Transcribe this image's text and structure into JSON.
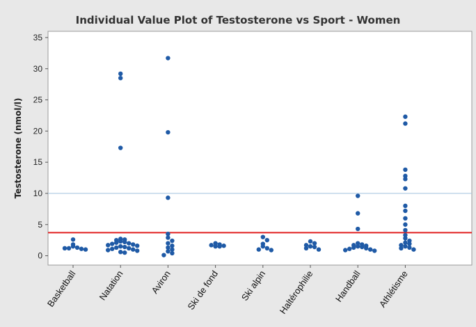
{
  "chart_data": {
    "type": "scatter",
    "title": "Individual Value Plot of Testosterone vs Sport - Women",
    "xlabel": "",
    "ylabel": "Testosterone (nmol/l)",
    "ylim": [
      -1.5,
      36
    ],
    "yticks": [
      0,
      5,
      10,
      15,
      20,
      25,
      30,
      35
    ],
    "categories": [
      "Basketball",
      "Natation",
      "Aviron",
      "Ski de fond",
      "Ski alpin",
      "Haltérophilie",
      "Handball",
      "Athlétisme"
    ],
    "reference_lines": [
      {
        "y": 10,
        "color": "#aac7e0"
      },
      {
        "y": 3.7,
        "color": "#e02020"
      }
    ],
    "series": [
      {
        "values": [
          [
            0,
            2.6
          ],
          [
            0,
            1.8
          ],
          [
            0,
            1.5
          ],
          [
            0,
            1.3
          ],
          [
            0,
            1.2
          ],
          [
            0,
            1.1
          ],
          [
            0,
            1.2
          ],
          [
            0,
            1.0
          ],
          [
            1,
            29.2
          ],
          [
            1,
            28.5
          ],
          [
            1,
            17.3
          ],
          [
            1,
            2.7
          ],
          [
            1,
            2.6
          ],
          [
            1,
            2.5
          ],
          [
            1,
            2.3
          ],
          [
            1,
            2.2
          ],
          [
            1,
            2.1
          ],
          [
            1,
            2.0
          ],
          [
            1,
            1.9
          ],
          [
            1,
            1.8
          ],
          [
            1,
            1.7
          ],
          [
            1,
            1.6
          ],
          [
            1,
            1.5
          ],
          [
            1,
            1.4
          ],
          [
            1,
            1.3
          ],
          [
            1,
            1.2
          ],
          [
            1,
            1.1
          ],
          [
            1,
            1.0
          ],
          [
            1,
            0.9
          ],
          [
            1,
            0.8
          ],
          [
            1,
            0.6
          ],
          [
            1,
            0.5
          ],
          [
            2,
            31.7
          ],
          [
            2,
            19.8
          ],
          [
            2,
            9.3
          ],
          [
            2,
            3.5
          ],
          [
            2,
            2.9
          ],
          [
            2,
            2.4
          ],
          [
            2,
            2.0
          ],
          [
            2,
            1.6
          ],
          [
            2,
            1.3
          ],
          [
            2,
            1.0
          ],
          [
            2,
            0.7
          ],
          [
            2,
            0.4
          ],
          [
            2,
            0.1
          ],
          [
            3,
            2.0
          ],
          [
            3,
            1.8
          ],
          [
            3,
            1.7
          ],
          [
            3,
            1.6
          ],
          [
            3,
            1.5
          ],
          [
            3,
            1.5
          ],
          [
            4,
            3.0
          ],
          [
            4,
            2.5
          ],
          [
            4,
            1.9
          ],
          [
            4,
            1.5
          ],
          [
            4,
            1.2
          ],
          [
            4,
            1.0
          ],
          [
            4,
            0.9
          ],
          [
            5,
            2.3
          ],
          [
            5,
            2.0
          ],
          [
            5,
            1.7
          ],
          [
            5,
            1.5
          ],
          [
            5,
            1.4
          ],
          [
            5,
            1.2
          ],
          [
            5,
            1.0
          ],
          [
            6,
            9.6
          ],
          [
            6,
            6.8
          ],
          [
            6,
            4.3
          ],
          [
            6,
            2.0
          ],
          [
            6,
            1.8
          ],
          [
            6,
            1.7
          ],
          [
            6,
            1.6
          ],
          [
            6,
            1.5
          ],
          [
            6,
            1.4
          ],
          [
            6,
            1.3
          ],
          [
            6,
            1.2
          ],
          [
            6,
            1.1
          ],
          [
            6,
            1.0
          ],
          [
            6,
            0.9
          ],
          [
            6,
            0.8
          ],
          [
            7,
            22.3
          ],
          [
            7,
            21.2
          ],
          [
            7,
            13.8
          ],
          [
            7,
            12.8
          ],
          [
            7,
            12.3
          ],
          [
            7,
            10.8
          ],
          [
            7,
            8.0
          ],
          [
            7,
            7.2
          ],
          [
            7,
            6.0
          ],
          [
            7,
            5.0
          ],
          [
            7,
            4.1
          ],
          [
            7,
            3.3
          ],
          [
            7,
            2.8
          ],
          [
            7,
            2.4
          ],
          [
            7,
            2.1
          ],
          [
            7,
            1.9
          ],
          [
            7,
            1.7
          ],
          [
            7,
            1.5
          ],
          [
            7,
            1.3
          ],
          [
            7,
            1.2
          ],
          [
            7,
            1.0
          ]
        ]
      }
    ],
    "point_color": "#1f5aa6",
    "plot_background": "#ffffff",
    "page_background": "#e8e8e8"
  }
}
